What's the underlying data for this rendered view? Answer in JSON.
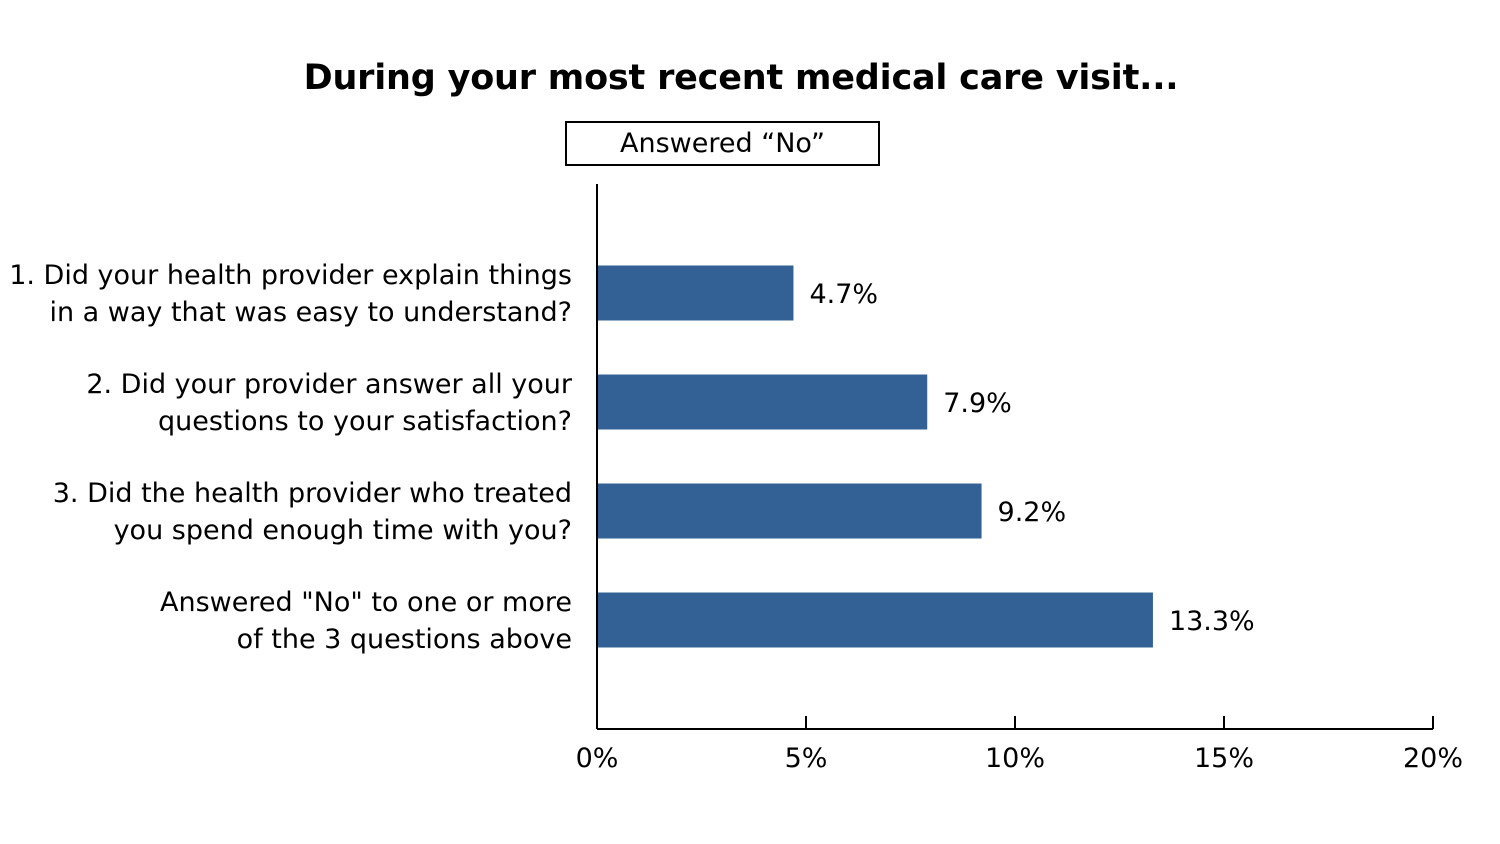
{
  "chart_data": {
    "type": "bar",
    "orientation": "horizontal",
    "title": "During your most recent medical care visit...",
    "legend": {
      "label": "Answered “No”",
      "placement": "top"
    },
    "categories": [
      [
        "1. Did your health provider explain things",
        "in a way that was easy to understand?"
      ],
      [
        "2. Did your provider answer all your",
        "questions to your satisfaction?"
      ],
      [
        "3. Did the health provider who treated",
        "you spend enough time with you?"
      ],
      [
        "Answered \"No\" to one or more",
        "of the 3 questions above"
      ]
    ],
    "series": [
      {
        "name": "Answered “No”",
        "values": [
          4.7,
          7.9,
          9.2,
          13.3
        ],
        "color": "#336195"
      }
    ],
    "data_labels": [
      "4.7%",
      "7.9%",
      "9.2%",
      "13.3%"
    ],
    "xlim": [
      0,
      20
    ],
    "xticks": [
      0,
      5,
      10,
      15,
      20
    ],
    "xtick_labels": [
      "0%",
      "5%",
      "10%",
      "15%",
      "20%"
    ],
    "xlabel": "",
    "ylabel": "",
    "grid": false
  }
}
